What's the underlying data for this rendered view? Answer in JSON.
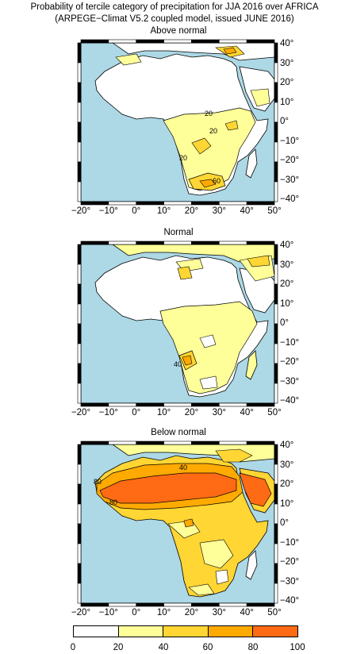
{
  "header": {
    "title_line1": "Probability of tercile category of precipitation for JJA 2016 over AFRICA",
    "title_line2": "(ARPEGE−Climat V5.2 coupled model, issued JUNE 2016)"
  },
  "panels": [
    {
      "title": "Above normal",
      "contour_labels": [
        "20",
        "20",
        "20",
        "60"
      ]
    },
    {
      "title": "Normal",
      "contour_labels": [
        "40"
      ]
    },
    {
      "title": "Below normal",
      "contour_labels": [
        "40",
        "80",
        "80"
      ]
    }
  ],
  "axes": {
    "lat_labels": [
      "40°",
      "30°",
      "20°",
      "10°",
      "0°",
      "−10°",
      "−20°",
      "−30°",
      "−40°"
    ],
    "lon_labels": [
      "−20°",
      "−10°",
      "0°",
      "10°",
      "20°",
      "30°",
      "40°",
      "50°"
    ]
  },
  "colorbar": {
    "ticks": [
      "0",
      "20",
      "40",
      "60",
      "80",
      "100"
    ],
    "colors": [
      "#ffffff",
      "#ffff99",
      "#ffd633",
      "#ffaa00",
      "#ff6a14"
    ]
  },
  "colors": {
    "ocean": "#add8e6",
    "land_low": "#ffffff",
    "level_20": "#ffff99",
    "level_40": "#ffd633",
    "level_60": "#ffaa00",
    "level_80": "#ff6a14"
  }
}
